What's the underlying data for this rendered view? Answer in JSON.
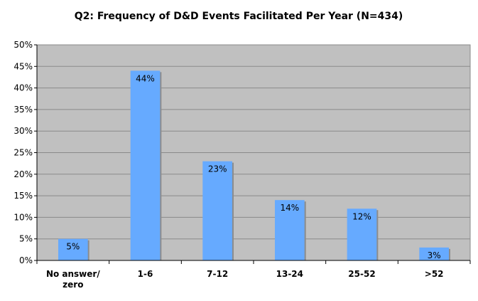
{
  "chart_data": {
    "type": "bar",
    "title": "Q2: Frequency of D&D Events Facilitated Per Year (N=434)",
    "xlabel": "",
    "ylabel": "",
    "categories": [
      "No answer/ zero",
      "1-6",
      "7-12",
      "13-24",
      "25-52",
      ">52"
    ],
    "category_lines": [
      [
        "No answer/",
        "zero"
      ],
      [
        "1-6"
      ],
      [
        "7-12"
      ],
      [
        "13-24"
      ],
      [
        "25-52"
      ],
      [
        ">52"
      ]
    ],
    "values": [
      5,
      44,
      23,
      14,
      12,
      3
    ],
    "data_labels": [
      "5%",
      "44%",
      "23%",
      "14%",
      "12%",
      "3%"
    ],
    "ylim": [
      0,
      50
    ],
    "yticks": [
      "0%",
      "5%",
      "10%",
      "15%",
      "20%",
      "25%",
      "30%",
      "35%",
      "40%",
      "45%",
      "50%"
    ],
    "grid": "horizontal",
    "legend": "none",
    "colors": {
      "bar": "#66aaff",
      "bar_shadow": "#8c8c8c",
      "plot_background": "#c0c0c0",
      "gridline": "#8a8a8a",
      "axis": "#000000"
    }
  }
}
